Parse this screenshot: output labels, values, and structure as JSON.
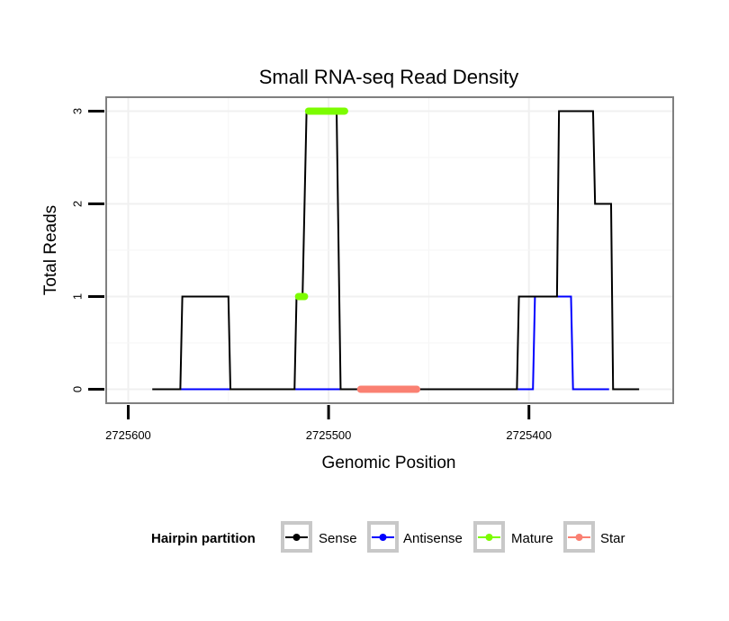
{
  "chart_data": {
    "type": "line",
    "title": "Small RNA-seq Read Density",
    "xlabel": "Genomic Position",
    "ylabel": "Total Reads",
    "x_reversed": true,
    "xlim": [
      2725611,
      2725328
    ],
    "ylim": [
      -0.15,
      3.15
    ],
    "x_ticks": [
      2725600,
      2725500,
      2725400
    ],
    "x_tick_labels": [
      "2725600",
      "2725500",
      "2725400"
    ],
    "y_ticks": [
      0,
      1,
      2,
      3
    ],
    "y_tick_labels": [
      "0",
      "1",
      "2",
      "3"
    ],
    "grid": true,
    "legend": {
      "title": "Hairpin partition",
      "position": "bottom",
      "entries": [
        {
          "label": "Sense",
          "color": "#000000"
        },
        {
          "label": "Antisense",
          "color": "#0000ff"
        },
        {
          "label": "Mature",
          "color": "#7cfc00"
        },
        {
          "label": "Star",
          "color": "#fa8072"
        }
      ]
    },
    "series": [
      {
        "name": "Sense",
        "color": "#000000",
        "style": "step-line",
        "x": [
          2725588,
          2725574,
          2725573,
          2725550,
          2725549,
          2725517,
          2725516,
          2725513,
          2725511,
          2725496,
          2725494,
          2725406,
          2725405,
          2725386,
          2725385,
          2725368,
          2725367,
          2725359,
          2725358,
          2725345
        ],
        "y": [
          0,
          0,
          1,
          1,
          0,
          0,
          1,
          1,
          3,
          3,
          0,
          0,
          1,
          1,
          3,
          3,
          2,
          2,
          0,
          0
        ]
      },
      {
        "name": "Antisense",
        "color": "#0000ff",
        "style": "step-line",
        "x": [
          2725574,
          2725550,
          2725549,
          2725496,
          2725494,
          2725398,
          2725397,
          2725379,
          2725378,
          2725360
        ],
        "y": [
          0,
          0,
          0,
          0,
          0,
          0,
          1,
          1,
          0,
          0
        ]
      },
      {
        "name": "Mature",
        "color": "#7cfc00",
        "style": "thick-segment",
        "x": [
          2725515,
          2725512,
          2725510,
          2725492
        ],
        "y": [
          1,
          1,
          3,
          3
        ]
      },
      {
        "name": "Star",
        "color": "#fa8072",
        "style": "thick-segment",
        "x": [
          2725484,
          2725456
        ],
        "y": [
          0,
          0
        ]
      }
    ]
  }
}
